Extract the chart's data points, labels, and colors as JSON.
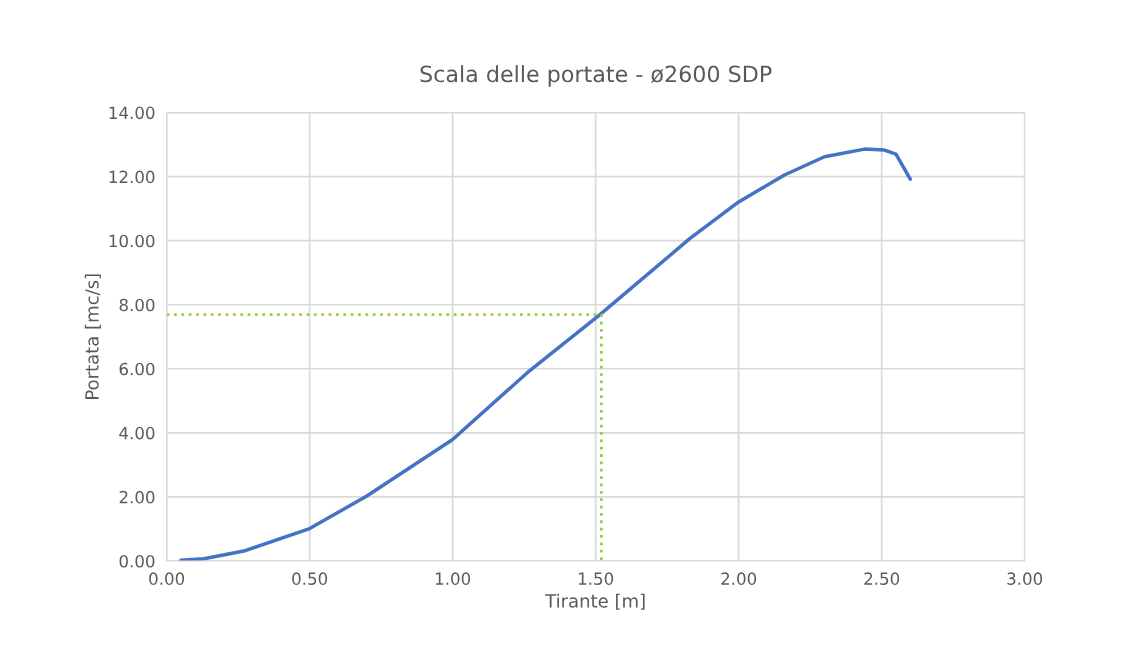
{
  "chart_data": {
    "type": "line",
    "title": "Scala delle portate - ø2600 SDP",
    "xlabel": "Tirante [m]",
    "ylabel": "Portata [mc/s]",
    "series": [
      {
        "color": "#4472c4",
        "line_style": "solid",
        "x": [
          0.05,
          0.13,
          0.27,
          0.5,
          0.7,
          1.0,
          1.26,
          1.515,
          1.83,
          2.0,
          2.16,
          2.3,
          2.44,
          2.51,
          2.55,
          2.6
        ],
        "values": [
          0.02,
          0.07,
          0.31,
          1.01,
          2.03,
          3.79,
          5.87,
          7.69,
          10.07,
          11.21,
          12.05,
          12.62,
          12.86,
          12.83,
          12.7,
          11.92
        ]
      },
      {
        "color": "#92d050",
        "line_style": "dotted",
        "x": [
          0,
          1.52,
          1.52
        ],
        "values": [
          7.69,
          7.69,
          0
        ]
      }
    ],
    "xlim": [
      0,
      3
    ],
    "ylim": [
      0,
      14
    ],
    "xticks": [
      {
        "value": 0,
        "label": "0.00"
      },
      {
        "value": 0.5,
        "label": "0.50"
      },
      {
        "value": 1,
        "label": "1.00"
      },
      {
        "value": 1.5,
        "label": "1.50"
      },
      {
        "value": 2,
        "label": "2.00"
      },
      {
        "value": 2.5,
        "label": "2.50"
      },
      {
        "value": 3,
        "label": "3.00"
      }
    ],
    "yticks": [
      {
        "value": 0,
        "label": "0.00"
      },
      {
        "value": 2,
        "label": "2.00"
      },
      {
        "value": 4,
        "label": "4.00"
      },
      {
        "value": 6,
        "label": "6.00"
      },
      {
        "value": 8,
        "label": "8.00"
      },
      {
        "value": 10,
        "label": "10.00"
      },
      {
        "value": 12,
        "label": "12.00"
      },
      {
        "value": 14,
        "label": "14.00"
      }
    ],
    "grid": true
  }
}
